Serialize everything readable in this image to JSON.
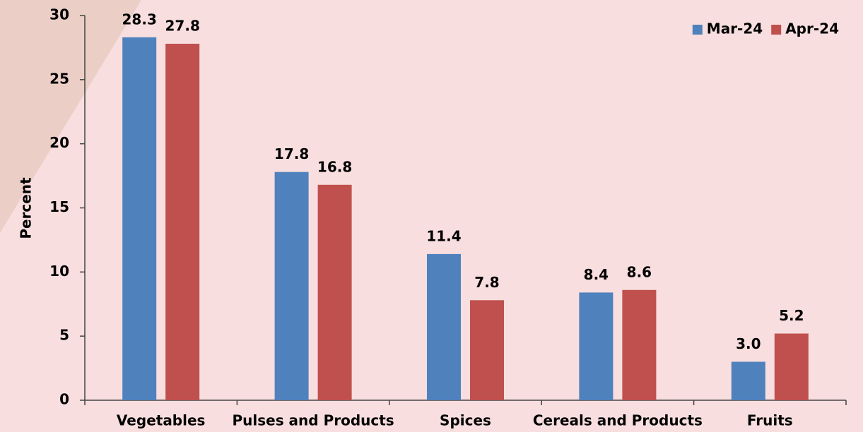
{
  "chart_data": {
    "type": "bar",
    "categories": [
      "Vegetables",
      "Pulses and Products",
      "Spices",
      "Cereals and Products",
      "Fruits"
    ],
    "series": [
      {
        "name": "Mar-24",
        "color": "#4f81bd",
        "values": [
          28.3,
          17.8,
          11.4,
          8.4,
          3.0
        ],
        "value_labels": [
          "28.3",
          "17.8",
          "11.4",
          "8.4",
          "3.0"
        ]
      },
      {
        "name": "Apr-24",
        "color": "#c0504d",
        "values": [
          27.8,
          16.8,
          7.8,
          8.6,
          5.2
        ],
        "value_labels": [
          "27.8",
          "16.8",
          "7.8",
          "8.6",
          "5.2"
        ]
      }
    ],
    "y_label": "Percent",
    "ylim": [
      0,
      30
    ],
    "yticks": [
      0,
      5,
      10,
      15,
      20,
      25,
      30
    ],
    "legend": "top-right"
  }
}
